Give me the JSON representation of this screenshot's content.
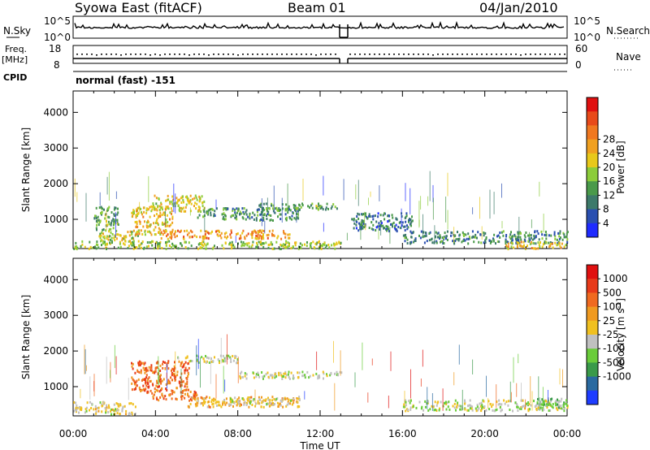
{
  "header": {
    "site": "Syowa East (fitACF)",
    "beam": "Beam 01",
    "date": "04/Jan/2010"
  },
  "top_panels": {
    "nsky_label": "N.Sky",
    "nsearch_label": "N.Search",
    "nsky_left_ticks": [
      "10^5",
      "10^0"
    ],
    "nsky_right_ticks": [
      "10^5",
      "10^0"
    ],
    "freq_label": "Freq.",
    "freq_unit": "[MHz]",
    "freq_ticks": [
      "18",
      "8"
    ],
    "nave_label": "Nave",
    "nave_ticks": [
      "60",
      "0"
    ],
    "cpid_label": "CPID",
    "cpid_value": "normal (fast) -151"
  },
  "chart_data": [
    {
      "type": "heatmap",
      "title": "",
      "xlabel": "",
      "ylabel": "Slant Range [km]",
      "x_ticks": [
        "00:00",
        "04:00",
        "08:00",
        "12:00",
        "16:00",
        "20:00",
        "00:00"
      ],
      "y_ticks": [
        1000,
        2000,
        3000,
        4000
      ],
      "ylim": [
        180,
        4600
      ],
      "xlim_hours": [
        0,
        24
      ],
      "colorbar": {
        "label": "Power [dB]",
        "ticks": [
          "4",
          "8",
          "12",
          "16",
          "20",
          "24",
          "28"
        ],
        "colors": [
          "#1f2bff",
          "#2a4fb0",
          "#3d7a6a",
          "#4a9a4a",
          "#8ccc3a",
          "#e8c81a",
          "#f0a020",
          "#f07820",
          "#e84a1a",
          "#e01010"
        ]
      },
      "scatter_regions_hours_km_level": [
        [
          0.0,
          13.0,
          200,
          420,
          0.45
        ],
        [
          1.2,
          3.2,
          350,
          700,
          0.5
        ],
        [
          1.0,
          2.2,
          700,
          1400,
          0.35
        ],
        [
          2.8,
          4.8,
          600,
          1400,
          0.6
        ],
        [
          3.8,
          6.4,
          1250,
          1700,
          0.55
        ],
        [
          4.2,
          10.5,
          480,
          720,
          0.7
        ],
        [
          6.0,
          11.0,
          1000,
          1350,
          0.3
        ],
        [
          9.0,
          12.8,
          1300,
          1480,
          0.35
        ],
        [
          13.5,
          16.5,
          700,
          1200,
          0.2
        ],
        [
          16.0,
          24.0,
          350,
          700,
          0.25
        ],
        [
          21.0,
          24.0,
          200,
          400,
          0.6
        ]
      ]
    },
    {
      "type": "heatmap",
      "title": "",
      "xlabel": "Time UT",
      "ylabel": "Slant Range [km]",
      "x_ticks": [
        "00:00",
        "04:00",
        "08:00",
        "12:00",
        "16:00",
        "20:00",
        "00:00"
      ],
      "y_ticks": [
        1000,
        2000,
        3000,
        4000
      ],
      "ylim": [
        180,
        4600
      ],
      "xlim_hours": [
        0,
        24
      ],
      "colorbar": {
        "label": "Velocity [m s^-1]",
        "ticks": [
          "1000",
          "500",
          "100",
          "25",
          "-25",
          "-100",
          "-500",
          "-1000"
        ],
        "colors": [
          "#1e3cff",
          "#2a6aa0",
          "#3a9a4a",
          "#6acc3a",
          "#c0c0c0",
          "#f0c020",
          "#f09a20",
          "#f06a20",
          "#e83a1a",
          "#e01010"
        ]
      },
      "scatter_regions_hours_km_level": [
        [
          0.0,
          3.0,
          250,
          600,
          4.5
        ],
        [
          2.8,
          5.6,
          900,
          1750,
          7.2
        ],
        [
          3.5,
          6.0,
          650,
          900,
          7.0
        ],
        [
          5.5,
          11.0,
          450,
          750,
          5.5
        ],
        [
          7.5,
          11.0,
          520,
          700,
          4.0
        ],
        [
          8.0,
          13.0,
          1250,
          1450,
          4.0
        ],
        [
          5.0,
          8.0,
          1700,
          1900,
          4.0
        ],
        [
          16.0,
          24.0,
          350,
          650,
          4.0
        ],
        [
          22.5,
          24.0,
          400,
          700,
          3.0
        ]
      ]
    }
  ]
}
